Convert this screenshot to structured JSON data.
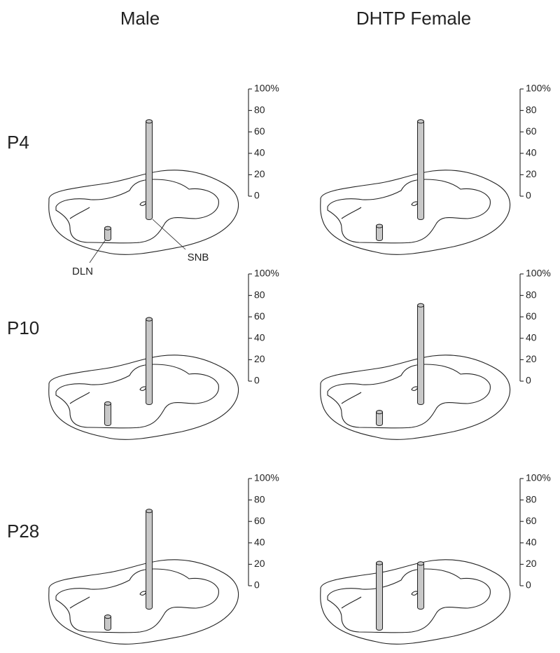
{
  "columns": [
    "Male",
    "DHTP Female"
  ],
  "rows": [
    "P4",
    "P10",
    "P28"
  ],
  "chart_data": [
    {
      "type": "bar",
      "categories": [
        "DLN",
        "SNB"
      ],
      "values": [
        10,
        90
      ],
      "color": "#c8c8c8",
      "ylim": [
        0,
        100
      ],
      "yticks": [
        0,
        20,
        40,
        60,
        80,
        {
          "value": 100,
          "label": "100%"
        }
      ]
    },
    {
      "type": "bar",
      "categories": [
        null,
        null
      ],
      "values": [
        12,
        90
      ],
      "color": "#c8c8c8",
      "ylim": [
        0,
        100
      ],
      "yticks": [
        0,
        20,
        40,
        60,
        80,
        {
          "value": 100,
          "label": "100%"
        }
      ]
    },
    {
      "type": "bar",
      "categories": [
        null,
        null
      ],
      "values": [
        19,
        78
      ],
      "color": "#c8c8c8",
      "ylim": [
        0,
        100
      ],
      "yticks": [
        0,
        20,
        40,
        60,
        80,
        {
          "value": 100,
          "label": "100%"
        }
      ]
    },
    {
      "type": "bar",
      "categories": [
        null,
        null
      ],
      "values": [
        11,
        91
      ],
      "color": "#c8c8c8",
      "ylim": [
        0,
        100
      ],
      "yticks": [
        0,
        20,
        40,
        60,
        80,
        {
          "value": 100,
          "label": "100%"
        }
      ]
    },
    {
      "type": "bar",
      "categories": [
        null,
        null
      ],
      "values": [
        11,
        90
      ],
      "color": "#c8c8c8",
      "ylim": [
        0,
        100
      ],
      "yticks": [
        0,
        20,
        40,
        60,
        80,
        {
          "value": 100,
          "label": "100%"
        }
      ]
    },
    {
      "type": "bar",
      "categories": [
        null,
        null
      ],
      "values": [
        61,
        41
      ],
      "color": "#c8c8c8",
      "ylim": [
        0,
        100
      ],
      "yticks": [
        0,
        20,
        40,
        60,
        80,
        {
          "value": 100,
          "label": "100%"
        }
      ]
    }
  ]
}
